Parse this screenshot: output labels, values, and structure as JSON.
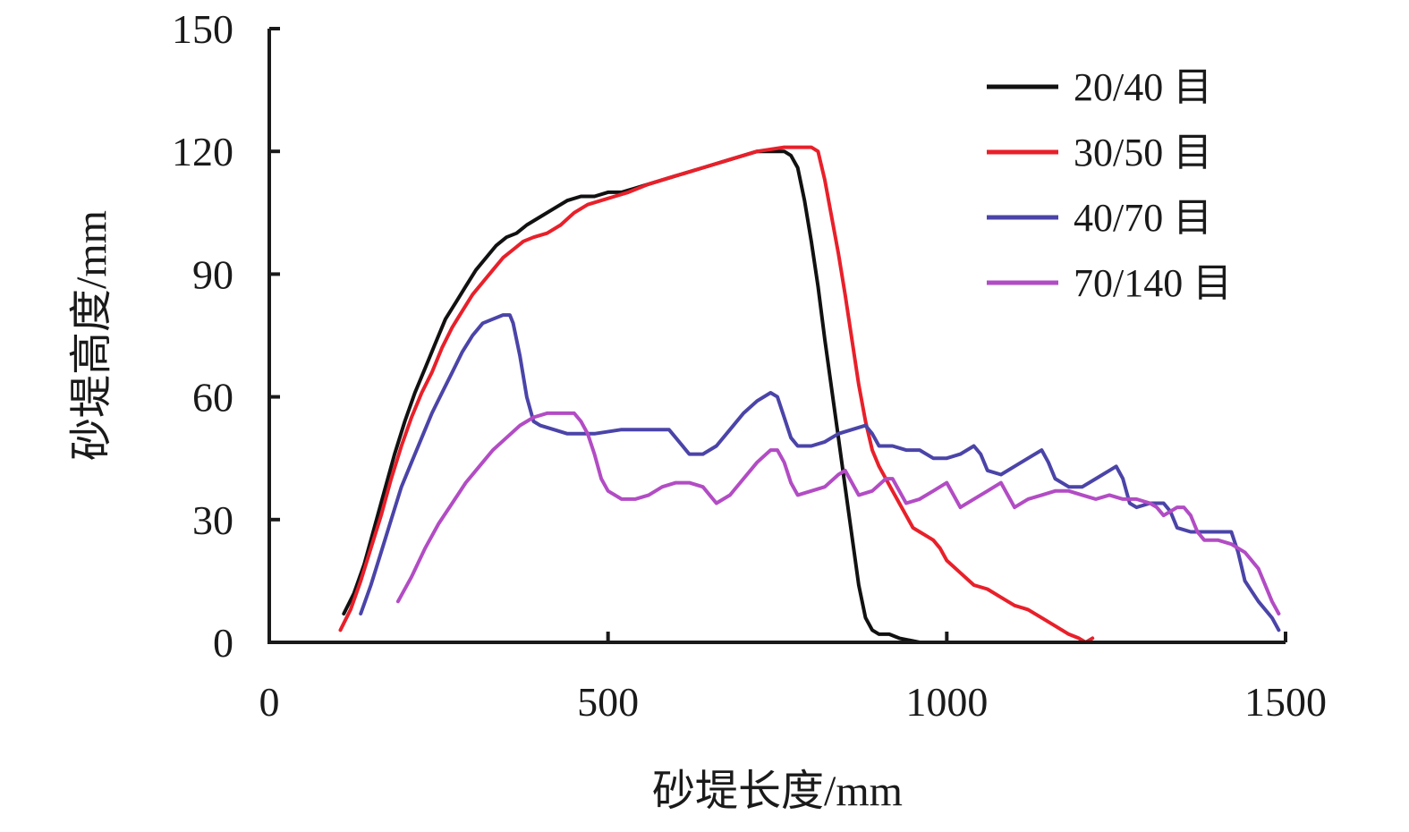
{
  "chart_data": {
    "type": "line",
    "title": "",
    "xlabel": "砂堤长度/mm",
    "ylabel": "砂堤高度/mm",
    "xlim": [
      0,
      1500
    ],
    "ylim": [
      0,
      150
    ],
    "xticks": [
      "0",
      "500",
      "1000",
      "1500"
    ],
    "yticks": [
      "0",
      "30",
      "60",
      "90",
      "120",
      "150"
    ],
    "grid": false,
    "legend_position": "top-right",
    "series": [
      {
        "name": "20/40 目",
        "color": "#111111",
        "points": [
          [
            110,
            7
          ],
          [
            125,
            12
          ],
          [
            140,
            19
          ],
          [
            155,
            28
          ],
          [
            170,
            37
          ],
          [
            185,
            46
          ],
          [
            200,
            54
          ],
          [
            215,
            61
          ],
          [
            230,
            67
          ],
          [
            245,
            73
          ],
          [
            260,
            79
          ],
          [
            275,
            83
          ],
          [
            290,
            87
          ],
          [
            305,
            91
          ],
          [
            320,
            94
          ],
          [
            335,
            97
          ],
          [
            350,
            99
          ],
          [
            365,
            100
          ],
          [
            380,
            102
          ],
          [
            400,
            104
          ],
          [
            420,
            106
          ],
          [
            440,
            108
          ],
          [
            460,
            109
          ],
          [
            480,
            109
          ],
          [
            500,
            110
          ],
          [
            520,
            110
          ],
          [
            540,
            111
          ],
          [
            560,
            112
          ],
          [
            600,
            114
          ],
          [
            640,
            116
          ],
          [
            680,
            118
          ],
          [
            720,
            120
          ],
          [
            740,
            120
          ],
          [
            760,
            120
          ],
          [
            770,
            119
          ],
          [
            780,
            116
          ],
          [
            790,
            108
          ],
          [
            800,
            98
          ],
          [
            810,
            87
          ],
          [
            820,
            74
          ],
          [
            830,
            62
          ],
          [
            840,
            50
          ],
          [
            850,
            38
          ],
          [
            860,
            26
          ],
          [
            870,
            14
          ],
          [
            880,
            6
          ],
          [
            890,
            3
          ],
          [
            900,
            2
          ],
          [
            915,
            2
          ],
          [
            930,
            1
          ],
          [
            960,
            0
          ],
          [
            1000,
            0
          ]
        ]
      },
      {
        "name": "30/50 目",
        "color": "#e8202a",
        "points": [
          [
            105,
            3
          ],
          [
            120,
            8
          ],
          [
            135,
            15
          ],
          [
            150,
            23
          ],
          [
            165,
            31
          ],
          [
            180,
            40
          ],
          [
            195,
            48
          ],
          [
            210,
            55
          ],
          [
            225,
            61
          ],
          [
            240,
            66
          ],
          [
            255,
            72
          ],
          [
            270,
            77
          ],
          [
            285,
            81
          ],
          [
            300,
            85
          ],
          [
            315,
            88
          ],
          [
            330,
            91
          ],
          [
            345,
            94
          ],
          [
            360,
            96
          ],
          [
            375,
            98
          ],
          [
            390,
            99
          ],
          [
            410,
            100
          ],
          [
            430,
            102
          ],
          [
            450,
            105
          ],
          [
            470,
            107
          ],
          [
            490,
            108
          ],
          [
            510,
            109
          ],
          [
            530,
            110
          ],
          [
            560,
            112
          ],
          [
            600,
            114
          ],
          [
            640,
            116
          ],
          [
            680,
            118
          ],
          [
            720,
            120
          ],
          [
            760,
            121
          ],
          [
            800,
            121
          ],
          [
            810,
            120
          ],
          [
            820,
            113
          ],
          [
            830,
            104
          ],
          [
            840,
            95
          ],
          [
            850,
            85
          ],
          [
            860,
            74
          ],
          [
            870,
            63
          ],
          [
            880,
            54
          ],
          [
            890,
            47
          ],
          [
            900,
            43
          ],
          [
            910,
            40
          ],
          [
            920,
            37
          ],
          [
            930,
            34
          ],
          [
            940,
            31
          ],
          [
            950,
            28
          ],
          [
            960,
            27
          ],
          [
            970,
            26
          ],
          [
            980,
            25
          ],
          [
            990,
            23
          ],
          [
            1000,
            20
          ],
          [
            1020,
            17
          ],
          [
            1040,
            14
          ],
          [
            1060,
            13
          ],
          [
            1080,
            11
          ],
          [
            1100,
            9
          ],
          [
            1120,
            8
          ],
          [
            1140,
            6
          ],
          [
            1160,
            4
          ],
          [
            1180,
            2
          ],
          [
            1195,
            1
          ],
          [
            1205,
            0
          ],
          [
            1215,
            1
          ]
        ]
      },
      {
        "name": "40/70 目",
        "color": "#4b44a8",
        "points": [
          [
            135,
            7
          ],
          [
            150,
            14
          ],
          [
            165,
            22
          ],
          [
            180,
            30
          ],
          [
            195,
            38
          ],
          [
            210,
            44
          ],
          [
            225,
            50
          ],
          [
            240,
            56
          ],
          [
            255,
            61
          ],
          [
            270,
            66
          ],
          [
            285,
            71
          ],
          [
            300,
            75
          ],
          [
            315,
            78
          ],
          [
            330,
            79
          ],
          [
            345,
            80
          ],
          [
            355,
            80
          ],
          [
            360,
            78
          ],
          [
            370,
            70
          ],
          [
            380,
            60
          ],
          [
            390,
            54
          ],
          [
            400,
            53
          ],
          [
            420,
            52
          ],
          [
            440,
            51
          ],
          [
            480,
            51
          ],
          [
            520,
            52
          ],
          [
            560,
            52
          ],
          [
            590,
            52
          ],
          [
            600,
            50
          ],
          [
            620,
            46
          ],
          [
            640,
            46
          ],
          [
            660,
            48
          ],
          [
            680,
            52
          ],
          [
            700,
            56
          ],
          [
            720,
            59
          ],
          [
            740,
            61
          ],
          [
            750,
            60
          ],
          [
            760,
            55
          ],
          [
            770,
            50
          ],
          [
            780,
            48
          ],
          [
            800,
            48
          ],
          [
            820,
            49
          ],
          [
            840,
            51
          ],
          [
            860,
            52
          ],
          [
            880,
            53
          ],
          [
            890,
            51
          ],
          [
            900,
            48
          ],
          [
            920,
            48
          ],
          [
            940,
            47
          ],
          [
            960,
            47
          ],
          [
            980,
            45
          ],
          [
            1000,
            45
          ],
          [
            1020,
            46
          ],
          [
            1040,
            48
          ],
          [
            1050,
            46
          ],
          [
            1060,
            42
          ],
          [
            1080,
            41
          ],
          [
            1100,
            43
          ],
          [
            1120,
            45
          ],
          [
            1140,
            47
          ],
          [
            1150,
            44
          ],
          [
            1160,
            40
          ],
          [
            1180,
            38
          ],
          [
            1200,
            38
          ],
          [
            1220,
            40
          ],
          [
            1240,
            42
          ],
          [
            1250,
            43
          ],
          [
            1260,
            40
          ],
          [
            1270,
            34
          ],
          [
            1280,
            33
          ],
          [
            1300,
            34
          ],
          [
            1320,
            34
          ],
          [
            1330,
            32
          ],
          [
            1340,
            28
          ],
          [
            1360,
            27
          ],
          [
            1380,
            27
          ],
          [
            1400,
            27
          ],
          [
            1420,
            27
          ],
          [
            1430,
            22
          ],
          [
            1440,
            15
          ],
          [
            1460,
            10
          ],
          [
            1480,
            6
          ],
          [
            1490,
            3
          ]
        ]
      },
      {
        "name": "70/140 目",
        "color": "#b24cc4",
        "points": [
          [
            190,
            10
          ],
          [
            210,
            16
          ],
          [
            230,
            23
          ],
          [
            250,
            29
          ],
          [
            270,
            34
          ],
          [
            290,
            39
          ],
          [
            310,
            43
          ],
          [
            330,
            47
          ],
          [
            350,
            50
          ],
          [
            370,
            53
          ],
          [
            390,
            55
          ],
          [
            410,
            56
          ],
          [
            430,
            56
          ],
          [
            450,
            56
          ],
          [
            460,
            54
          ],
          [
            470,
            51
          ],
          [
            480,
            46
          ],
          [
            490,
            40
          ],
          [
            500,
            37
          ],
          [
            520,
            35
          ],
          [
            540,
            35
          ],
          [
            560,
            36
          ],
          [
            580,
            38
          ],
          [
            600,
            39
          ],
          [
            620,
            39
          ],
          [
            640,
            38
          ],
          [
            660,
            34
          ],
          [
            680,
            36
          ],
          [
            700,
            40
          ],
          [
            720,
            44
          ],
          [
            740,
            47
          ],
          [
            750,
            47
          ],
          [
            760,
            44
          ],
          [
            770,
            39
          ],
          [
            780,
            36
          ],
          [
            800,
            37
          ],
          [
            820,
            38
          ],
          [
            840,
            41
          ],
          [
            850,
            42
          ],
          [
            860,
            39
          ],
          [
            870,
            36
          ],
          [
            890,
            37
          ],
          [
            910,
            40
          ],
          [
            920,
            40
          ],
          [
            930,
            37
          ],
          [
            940,
            34
          ],
          [
            960,
            35
          ],
          [
            980,
            37
          ],
          [
            1000,
            39
          ],
          [
            1010,
            36
          ],
          [
            1020,
            33
          ],
          [
            1040,
            35
          ],
          [
            1060,
            37
          ],
          [
            1080,
            39
          ],
          [
            1090,
            36
          ],
          [
            1100,
            33
          ],
          [
            1120,
            35
          ],
          [
            1140,
            36
          ],
          [
            1160,
            37
          ],
          [
            1180,
            37
          ],
          [
            1200,
            36
          ],
          [
            1220,
            35
          ],
          [
            1240,
            36
          ],
          [
            1260,
            35
          ],
          [
            1280,
            35
          ],
          [
            1300,
            34
          ],
          [
            1310,
            33
          ],
          [
            1320,
            31
          ],
          [
            1340,
            33
          ],
          [
            1350,
            33
          ],
          [
            1360,
            31
          ],
          [
            1370,
            27
          ],
          [
            1380,
            25
          ],
          [
            1400,
            25
          ],
          [
            1420,
            24
          ],
          [
            1440,
            22
          ],
          [
            1460,
            18
          ],
          [
            1480,
            10
          ],
          [
            1490,
            7
          ]
        ]
      }
    ]
  }
}
